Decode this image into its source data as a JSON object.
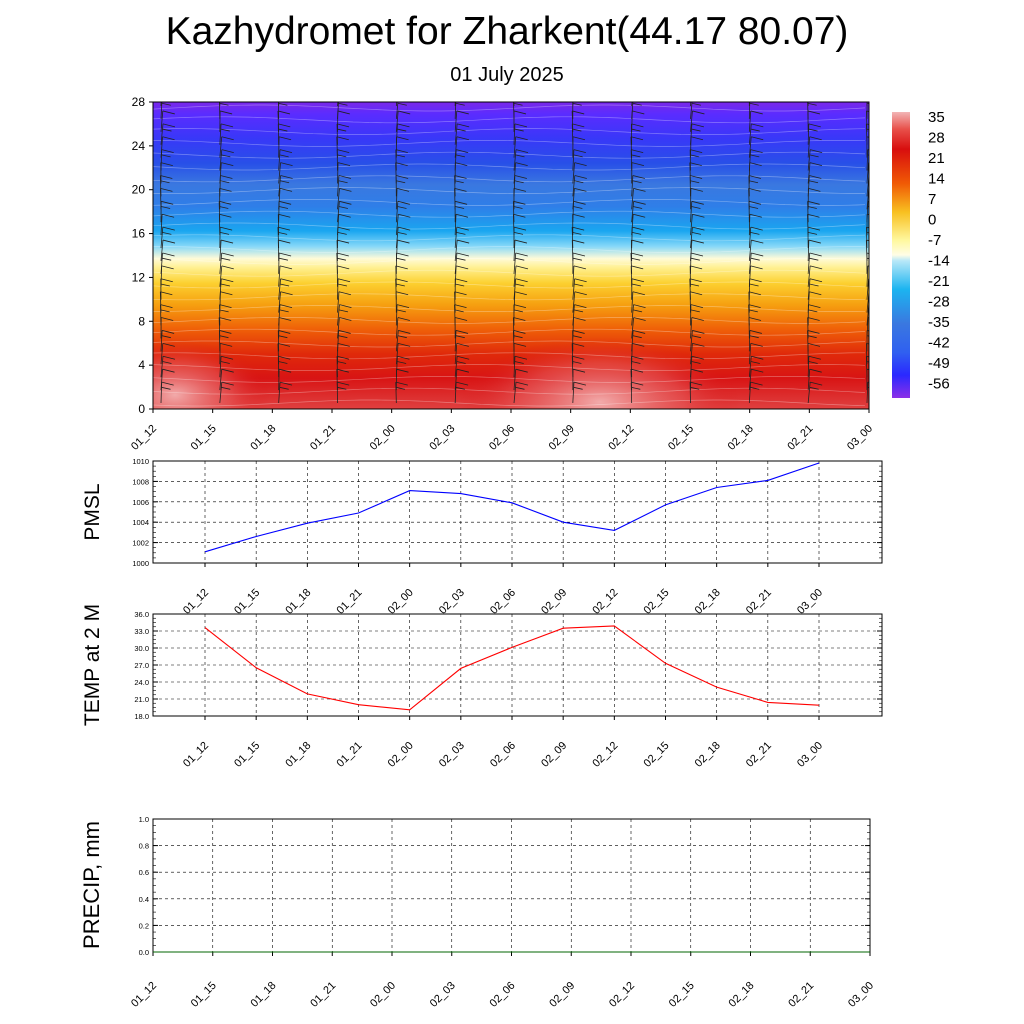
{
  "page": {
    "title": "Kazhydromet for Zharkent(44.17 80.07)",
    "subtitle": "01 July 2025"
  },
  "chart_data": [
    {
      "id": "cross-section",
      "type": "heatmap",
      "title": "",
      "x_tick_labels": [
        "01_12",
        "01_15",
        "01_18",
        "01_21",
        "02_00",
        "02_03",
        "02_06",
        "02_09",
        "02_12",
        "02_15",
        "02_18",
        "02_21",
        "03_00"
      ],
      "y_ticks": [
        0,
        4,
        8,
        12,
        16,
        20,
        24,
        28
      ],
      "ylim": [
        0,
        28
      ],
      "colorbar_labels": [
        "35",
        "28",
        "21",
        "14",
        "7",
        "0",
        "-7",
        "-14",
        "-21",
        "-28",
        "-35",
        "-42",
        "-49",
        "-56"
      ],
      "colorbar_stops": [
        {
          "value": 38,
          "color": "#f2b5b5"
        },
        {
          "value": 31,
          "color": "#e8504a"
        },
        {
          "value": 24,
          "color": "#d80e0e"
        },
        {
          "value": 14,
          "color": "#f05a05"
        },
        {
          "value": 5,
          "color": "#f8c020"
        },
        {
          "value": -5,
          "color": "#fff8a0"
        },
        {
          "value": -12,
          "color": "#fffde6"
        },
        {
          "value": -16,
          "color": "#b8e8f8"
        },
        {
          "value": -24,
          "color": "#1cb4f0"
        },
        {
          "value": -36,
          "color": "#3a78e0"
        },
        {
          "value": -46,
          "color": "#3060f0"
        },
        {
          "value": -52,
          "color": "#2a28ff"
        },
        {
          "value": -59,
          "color": "#8c30e8"
        }
      ],
      "wind_barbs": true
    },
    {
      "id": "pmsl",
      "type": "line",
      "ylabel": "PMSL",
      "categories": [
        "01_12",
        "01_15",
        "01_18",
        "01_21",
        "02_00",
        "02_03",
        "02_06",
        "02_09",
        "02_12",
        "02_15",
        "02_18",
        "02_21",
        "03_00"
      ],
      "values": [
        1001.1,
        1002.6,
        1003.9,
        1004.9,
        1007.1,
        1006.8,
        1005.9,
        1004.0,
        1003.2,
        1005.7,
        1007.4,
        1008.1,
        1009.8
      ],
      "ylim": [
        1000,
        1010
      ],
      "y_ticks": [
        1000,
        1002,
        1004,
        1006,
        1008,
        1010
      ],
      "y_tick_labels": [
        "1000",
        "1002",
        "1004",
        "1006",
        "1008",
        "1010"
      ],
      "color": "#0000ff",
      "grid": true
    },
    {
      "id": "temp2m",
      "type": "line",
      "ylabel": "TEMP at 2 M",
      "categories": [
        "01_12",
        "01_15",
        "01_18",
        "01_21",
        "02_00",
        "02_03",
        "02_06",
        "02_09",
        "02_12",
        "02_15",
        "02_18",
        "02_21",
        "03_00"
      ],
      "values": [
        33.6,
        26.5,
        21.9,
        20.0,
        19.1,
        26.4,
        30.1,
        33.5,
        33.9,
        27.3,
        23.1,
        20.4,
        19.9
      ],
      "ylim": [
        18,
        36
      ],
      "y_ticks": [
        18,
        21,
        24,
        27,
        30,
        33,
        36
      ],
      "y_tick_labels": [
        "18.0",
        "21.0",
        "24.0",
        "27.0",
        "30.0",
        "33.0",
        "36.0"
      ],
      "color": "#ff0000",
      "grid": true
    },
    {
      "id": "precip",
      "type": "line",
      "ylabel": "PRECIP, mm",
      "categories": [
        "01_12",
        "01_15",
        "01_18",
        "01_21",
        "02_00",
        "02_03",
        "02_06",
        "02_09",
        "02_12",
        "02_15",
        "02_18",
        "02_21",
        "03_00"
      ],
      "values": [
        0,
        0,
        0,
        0,
        0,
        0,
        0,
        0,
        0,
        0,
        0,
        0,
        0
      ],
      "ylim": [
        0,
        1
      ],
      "y_ticks": [
        0,
        0.2,
        0.4,
        0.6,
        0.8,
        1.0
      ],
      "y_tick_labels": [
        "0.0",
        "0.2",
        "0.4",
        "0.6",
        "0.8",
        "1.0"
      ],
      "color": "#006400",
      "grid": true
    }
  ]
}
